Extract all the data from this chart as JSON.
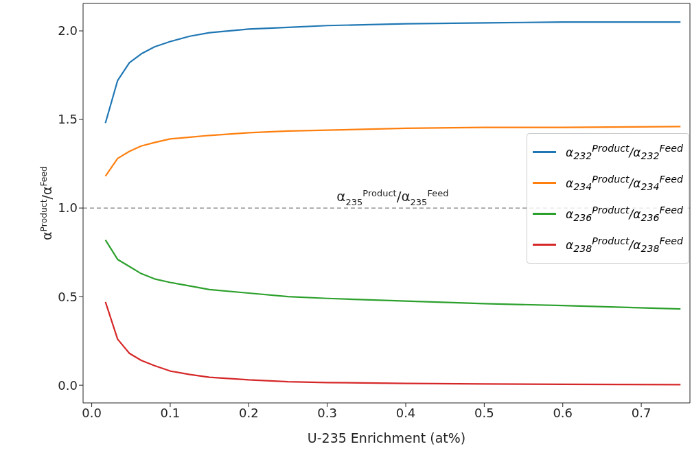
{
  "chart_data": {
    "type": "line",
    "xlabel": "U-235 Enrichment (at%)",
    "ylabel": "α$^{Product}$/α$^{Feed}$",
    "x": [
      0.0175,
      0.033,
      0.048,
      0.063,
      0.08,
      0.1,
      0.125,
      0.15,
      0.2,
      0.25,
      0.3,
      0.4,
      0.5,
      0.6,
      0.75
    ],
    "series": [
      {
        "name": "α$_{232}$$^{Product}$/α$_{232}$$^{Feed}$",
        "color": "#1f77b4",
        "values": [
          1.48,
          1.72,
          1.82,
          1.87,
          1.91,
          1.94,
          1.97,
          1.99,
          2.01,
          2.02,
          2.03,
          2.04,
          2.045,
          2.05,
          2.05
        ]
      },
      {
        "name": "α$_{234}$$^{Product}$/α$_{234}$$^{Feed}$",
        "color": "#ff7f0e",
        "values": [
          1.18,
          1.28,
          1.32,
          1.35,
          1.37,
          1.39,
          1.4,
          1.41,
          1.425,
          1.435,
          1.44,
          1.45,
          1.455,
          1.455,
          1.46
        ]
      },
      {
        "name": "α$_{236}$$^{Product}$/α$_{236}$$^{Feed}$",
        "color": "#2ca02c",
        "values": [
          0.82,
          0.71,
          0.67,
          0.63,
          0.6,
          0.58,
          0.56,
          0.54,
          0.52,
          0.5,
          0.49,
          0.475,
          0.46,
          0.45,
          0.43
        ]
      },
      {
        "name": "α$_{238}$$^{Product}$/α$_{238}$$^{Feed}$",
        "color": "#d62728",
        "values": [
          0.47,
          0.26,
          0.18,
          0.14,
          0.11,
          0.08,
          0.06,
          0.045,
          0.03,
          0.02,
          0.015,
          0.01,
          0.007,
          0.005,
          0.003
        ]
      }
    ],
    "xlim": [
      -0.011,
      0.762
    ],
    "xticks": [
      {
        "value": 0,
        "label": "0.0"
      },
      0.1,
      0.2,
      0.3,
      0.4,
      0.5,
      0.6,
      0.7
    ],
    "ylim": [
      -0.1,
      2.155
    ],
    "yticks": [
      {
        "value": 0,
        "label": "0.0"
      },
      0.5,
      {
        "value": 1,
        "label": "1.0"
      },
      1.5,
      {
        "value": 2,
        "label": "2.0"
      }
    ],
    "ref_lines": [
      {
        "axis": "y",
        "value": 1,
        "label": "α$_{235}$$^{Product}$/α$_{235}$$^{Feed}$",
        "color": "#808080",
        "line_style": "dashed"
      }
    ],
    "grid": false,
    "legend": "right",
    "marker": "none",
    "line_style": "solid"
  }
}
